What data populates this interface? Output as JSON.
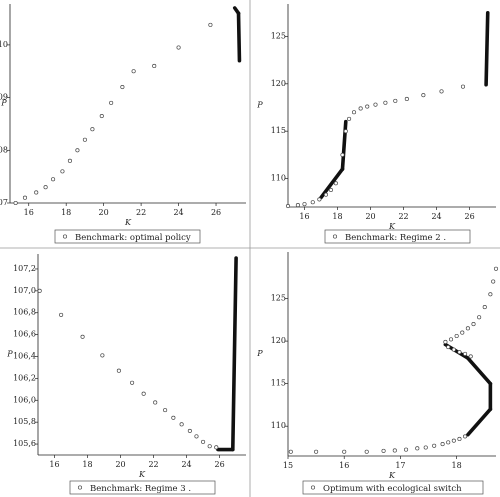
{
  "chart_data": [
    {
      "type": "scatter",
      "legend": "Benchmark: optimal policy",
      "legend_position": "bottom",
      "xlabel": "K",
      "ylabel": "P",
      "xlim": [
        15,
        27.6
      ],
      "ylim": [
        107,
        110.7
      ],
      "xticks": [
        16,
        18,
        20,
        22,
        24,
        26
      ],
      "yticks": [
        107,
        108,
        109,
        110
      ],
      "points": [
        [
          15.3,
          107.0
        ],
        [
          15.8,
          107.1
        ],
        [
          16.4,
          107.2
        ],
        [
          16.9,
          107.3
        ],
        [
          17.3,
          107.45
        ],
        [
          17.8,
          107.6
        ],
        [
          18.2,
          107.8
        ],
        [
          18.6,
          108.0
        ],
        [
          19.0,
          108.2
        ],
        [
          19.4,
          108.4
        ],
        [
          19.9,
          108.65
        ],
        [
          20.4,
          108.9
        ],
        [
          21.0,
          109.2
        ],
        [
          21.6,
          109.5
        ],
        [
          22.7,
          109.6
        ],
        [
          24.0,
          109.95
        ],
        [
          25.7,
          110.38
        ]
      ],
      "dense_segments": [
        {
          "x0": 27.0,
          "x1": 27.2,
          "y0": 110.7,
          "y1": 110.6
        },
        {
          "x0": 27.2,
          "x1": 27.25,
          "y0": 110.6,
          "y1": 109.7
        }
      ]
    },
    {
      "type": "scatter",
      "legend": "Benchmark: Regime 2 .",
      "legend_position": "bottom",
      "xlabel": "K",
      "ylabel": "P",
      "xlim": [
        15,
        27.6
      ],
      "ylim": [
        107,
        128
      ],
      "xticks": [
        16,
        18,
        20,
        22,
        24,
        26
      ],
      "yticks": [
        110,
        115,
        120,
        125
      ],
      "points": [
        [
          15.0,
          107.1
        ],
        [
          15.6,
          107.2
        ],
        [
          16.0,
          107.3
        ],
        [
          16.5,
          107.5
        ],
        [
          16.9,
          107.8
        ],
        [
          17.3,
          108.3
        ],
        [
          17.6,
          108.8
        ],
        [
          17.9,
          109.5
        ],
        [
          18.3,
          112.5
        ],
        [
          18.5,
          115.0
        ],
        [
          18.7,
          116.3
        ],
        [
          19.0,
          117.0
        ],
        [
          19.4,
          117.4
        ],
        [
          19.8,
          117.6
        ],
        [
          20.3,
          117.8
        ],
        [
          20.9,
          118.0
        ],
        [
          21.5,
          118.2
        ],
        [
          22.2,
          118.4
        ],
        [
          23.2,
          118.8
        ],
        [
          24.3,
          119.2
        ],
        [
          25.6,
          119.7
        ]
      ],
      "dense_segments": [
        {
          "x0": 17.0,
          "x1": 18.3,
          "y0": 108.0,
          "y1": 111.0
        },
        {
          "x0": 18.3,
          "x1": 18.5,
          "y0": 111.0,
          "y1": 116.0
        },
        {
          "x0": 27.0,
          "x1": 27.1,
          "y0": 119.9,
          "y1": 127.5
        }
      ]
    },
    {
      "type": "scatter",
      "legend": "Benchmark: Regime 3 .",
      "legend_position": "bottom",
      "xlabel": "K",
      "ylabel": "P",
      "xlim": [
        15,
        27.6
      ],
      "ylim": [
        105.5,
        107.3
      ],
      "xticks": [
        16,
        18,
        20,
        22,
        24,
        26
      ],
      "yticks": [
        "105,6",
        "105,8",
        "106,0",
        "106,2",
        "106,4",
        "106,6",
        "106,8",
        "107,0",
        "107,2"
      ],
      "ytick_values": [
        105.6,
        105.8,
        106.0,
        106.2,
        106.4,
        106.6,
        106.8,
        107.0,
        107.2
      ],
      "points": [
        [
          15.1,
          107.0
        ],
        [
          16.4,
          106.78
        ],
        [
          17.7,
          106.58
        ],
        [
          18.9,
          106.41
        ],
        [
          19.9,
          106.27
        ],
        [
          20.7,
          106.16
        ],
        [
          21.4,
          106.06
        ],
        [
          22.1,
          105.98
        ],
        [
          22.7,
          105.91
        ],
        [
          23.2,
          105.84
        ],
        [
          23.7,
          105.78
        ],
        [
          24.2,
          105.72
        ],
        [
          24.6,
          105.67
        ],
        [
          25.0,
          105.62
        ],
        [
          25.4,
          105.58
        ],
        [
          25.8,
          105.57
        ]
      ],
      "dense_segments": [
        {
          "x0": 25.9,
          "x1": 26.8,
          "y0": 105.55,
          "y1": 105.55
        },
        {
          "x0": 26.8,
          "x1": 27.0,
          "y0": 105.55,
          "y1": 107.3
        }
      ]
    },
    {
      "type": "scatter",
      "legend": "Optimum with ecological switch",
      "legend_position": "bottom",
      "xlabel": "K",
      "ylabel": "P",
      "xlim": [
        15,
        18.7
      ],
      "ylim": [
        106.5,
        130
      ],
      "xticks": [
        15,
        16,
        17,
        18
      ],
      "yticks": [
        110,
        115,
        120,
        125
      ],
      "points": [
        [
          15.05,
          107.0
        ],
        [
          15.5,
          107.0
        ],
        [
          16.0,
          107.0
        ],
        [
          16.4,
          107.0
        ],
        [
          16.7,
          107.1
        ],
        [
          16.9,
          107.15
        ],
        [
          17.1,
          107.25
        ],
        [
          17.3,
          107.4
        ],
        [
          17.45,
          107.5
        ],
        [
          17.6,
          107.7
        ],
        [
          17.75,
          107.9
        ],
        [
          17.85,
          108.1
        ],
        [
          17.95,
          108.3
        ],
        [
          18.05,
          108.5
        ],
        [
          18.15,
          108.8
        ],
        [
          17.85,
          119.3
        ],
        [
          17.95,
          119.0
        ],
        [
          18.05,
          118.7
        ],
        [
          18.15,
          118.5
        ],
        [
          18.25,
          118.2
        ],
        [
          17.8,
          119.9
        ],
        [
          17.9,
          120.2
        ],
        [
          18.0,
          120.6
        ],
        [
          18.1,
          121.0
        ],
        [
          18.2,
          121.5
        ],
        [
          18.3,
          122.0
        ],
        [
          18.4,
          122.8
        ],
        [
          18.5,
          124.0
        ],
        [
          18.6,
          125.5
        ],
        [
          18.65,
          127.0
        ],
        [
          18.7,
          128.5
        ]
      ],
      "dense_segments": [
        {
          "x0": 18.2,
          "x1": 18.6,
          "y0": 109.0,
          "y1": 112.0
        },
        {
          "x0": 18.6,
          "x1": 18.6,
          "y0": 112.0,
          "y1": 115.0
        },
        {
          "x0": 18.6,
          "x1": 18.2,
          "y0": 115.0,
          "y1": 118.0
        },
        {
          "x0": 18.2,
          "x1": 17.8,
          "y0": 118.0,
          "y1": 119.6
        }
      ]
    }
  ]
}
